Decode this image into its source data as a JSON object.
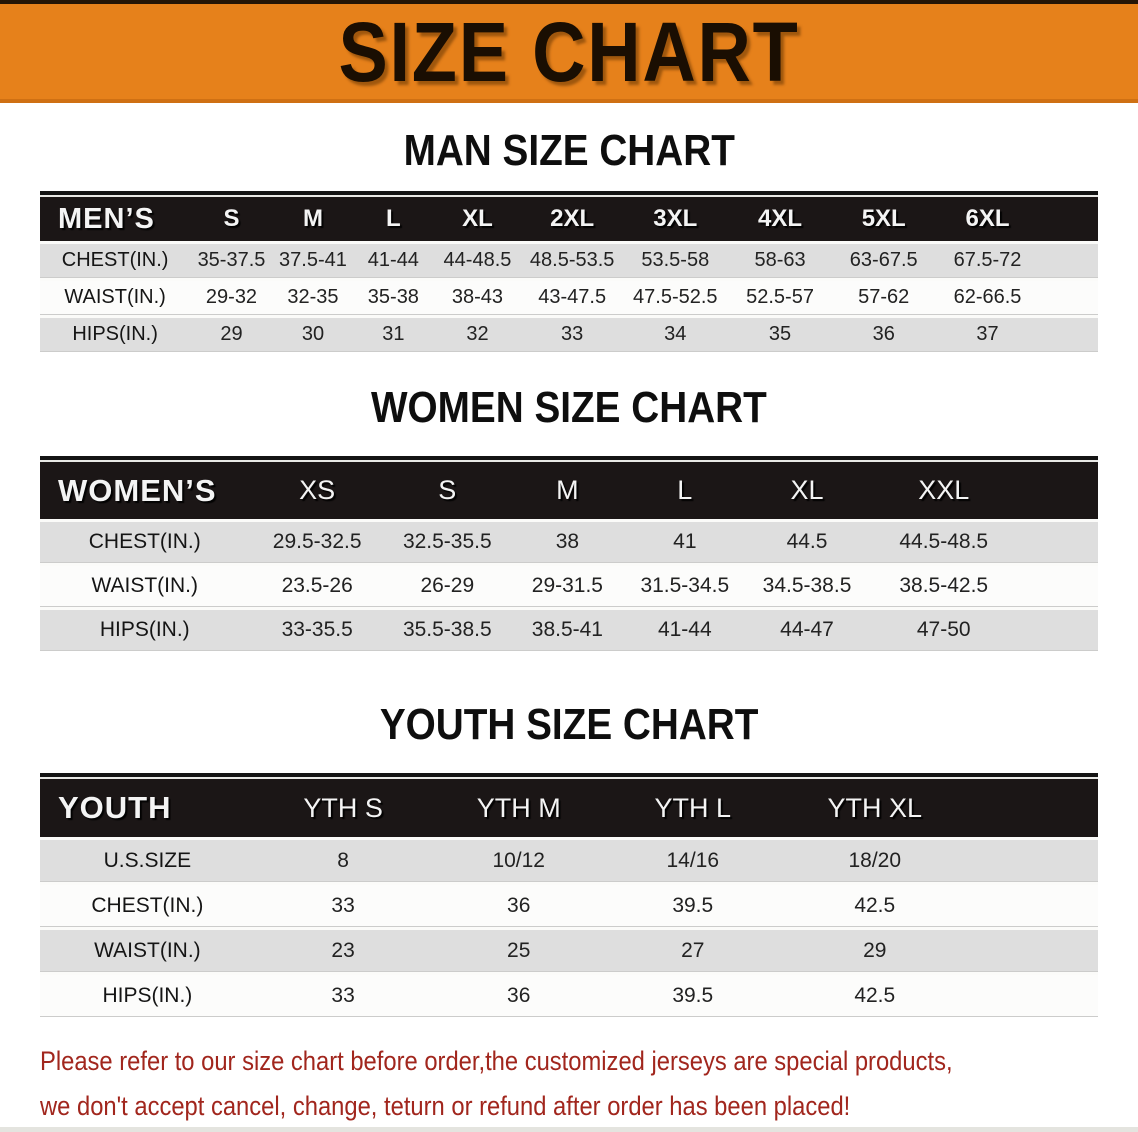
{
  "banner": {
    "title": "SIZE CHART"
  },
  "note": {
    "line1": "Please refer to our size chart before order,the customized jerseys are special products,",
    "line2": "we don't accept cancel, change, teturn or refund after order has been placed!"
  },
  "colors": {
    "banner_orange": "#e6811b",
    "table_header_black": "#1b1616",
    "row_gray": "#dedede",
    "row_white": "#fcfcfb",
    "note_red": "#a1261d"
  },
  "chart_data": [
    {
      "type": "table",
      "title": "MAN SIZE CHART",
      "corner_label": "MEN’S",
      "columns": [
        "S",
        "M",
        "L",
        "XL",
        "2XL",
        "3XL",
        "4XL",
        "5XL",
        "6XL"
      ],
      "rows": [
        {
          "label": "CHEST(IN.)",
          "values": [
            "35-37.5",
            "37.5-41",
            "41-44",
            "44-48.5",
            "48.5-53.5",
            "53.5-58",
            "58-63",
            "63-67.5",
            "67.5-72"
          ]
        },
        {
          "label": "WAIST(IN.)",
          "values": [
            "29-32",
            "32-35",
            "35-38",
            "38-43",
            "43-47.5",
            "47.5-52.5",
            "52.5-57",
            "57-62",
            "62-66.5"
          ]
        },
        {
          "label": "HIPS(IN.)",
          "values": [
            "29",
            "30",
            "31",
            "32",
            "33",
            "34",
            "35",
            "36",
            "37"
          ]
        }
      ]
    },
    {
      "type": "table",
      "title": "WOMEN SIZE CHART",
      "corner_label": "WOMEN’S",
      "columns": [
        "XS",
        "S",
        "M",
        "L",
        "XL",
        "XXL"
      ],
      "rows": [
        {
          "label": "CHEST(IN.)",
          "values": [
            "29.5-32.5",
            "32.5-35.5",
            "38",
            "41",
            "44.5",
            "44.5-48.5"
          ]
        },
        {
          "label": "WAIST(IN.)",
          "values": [
            "23.5-26",
            "26-29",
            "29-31.5",
            "31.5-34.5",
            "34.5-38.5",
            "38.5-42.5"
          ]
        },
        {
          "label": "HIPS(IN.)",
          "values": [
            "33-35.5",
            "35.5-38.5",
            "38.5-41",
            "41-44",
            "44-47",
            "47-50"
          ]
        }
      ]
    },
    {
      "type": "table",
      "title": "YOUTH SIZE CHART",
      "corner_label": "YOUTH",
      "columns": [
        "YTH S",
        "YTH M",
        "YTH L",
        "YTH XL"
      ],
      "rows": [
        {
          "label": "U.S.SIZE",
          "values": [
            "8",
            "10/12",
            "14/16",
            "18/20"
          ]
        },
        {
          "label": "CHEST(IN.)",
          "values": [
            "33",
            "36",
            "39.5",
            "42.5"
          ]
        },
        {
          "label": "WAIST(IN.)",
          "values": [
            "23",
            "25",
            "27",
            "29"
          ]
        },
        {
          "label": "HIPS(IN.)",
          "values": [
            "33",
            "36",
            "39.5",
            "42.5"
          ]
        }
      ]
    }
  ]
}
